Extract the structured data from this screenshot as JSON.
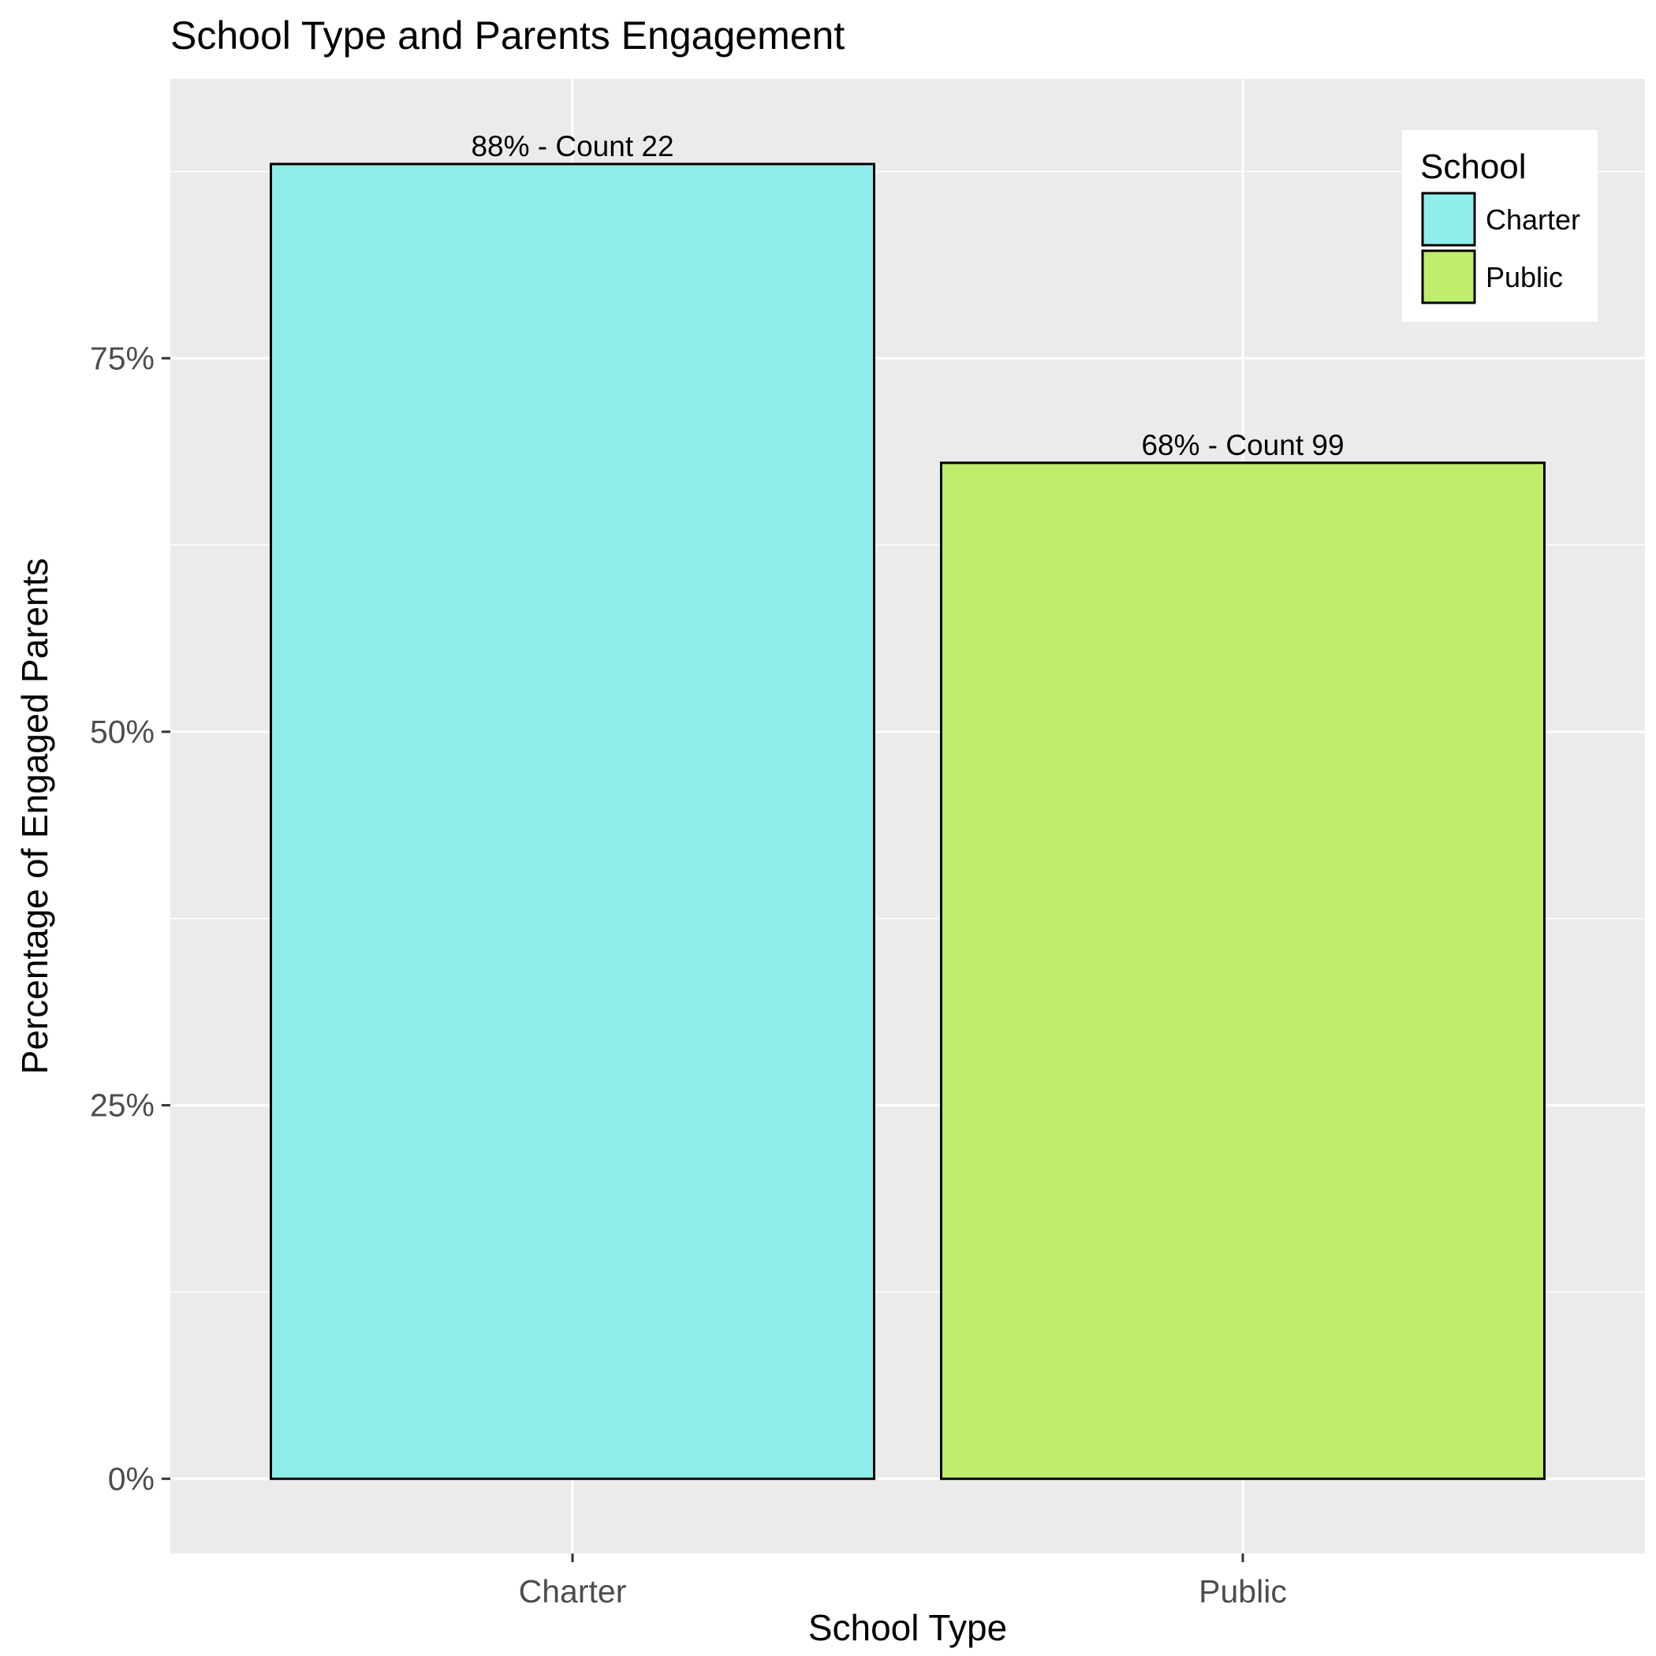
{
  "chart_data": {
    "type": "bar",
    "title": "School Type and Parents Engagement",
    "xlabel": "School Type",
    "ylabel": "Percentage of Engaged Parents",
    "categories": [
      "Charter",
      "Public"
    ],
    "values": [
      0.88,
      0.68
    ],
    "data_labels": [
      "88% - Count 22",
      "68% - Count 99"
    ],
    "colors": [
      "#8EEEEB",
      "#C0ED6A"
    ],
    "bar_outline_color": "#000000",
    "panel_background": "#EBEBEB",
    "grid_color": "#FFFFFF",
    "grid": true,
    "ylim": [
      -0.05,
      0.937
    ],
    "y_ticks": [
      0,
      0.25,
      0.5,
      0.75
    ],
    "y_tick_labels": [
      "0%",
      "25%",
      "50%",
      "75%"
    ],
    "legend": {
      "title": "School",
      "position": "top-right",
      "entries": [
        "Charter",
        "Public"
      ]
    }
  }
}
